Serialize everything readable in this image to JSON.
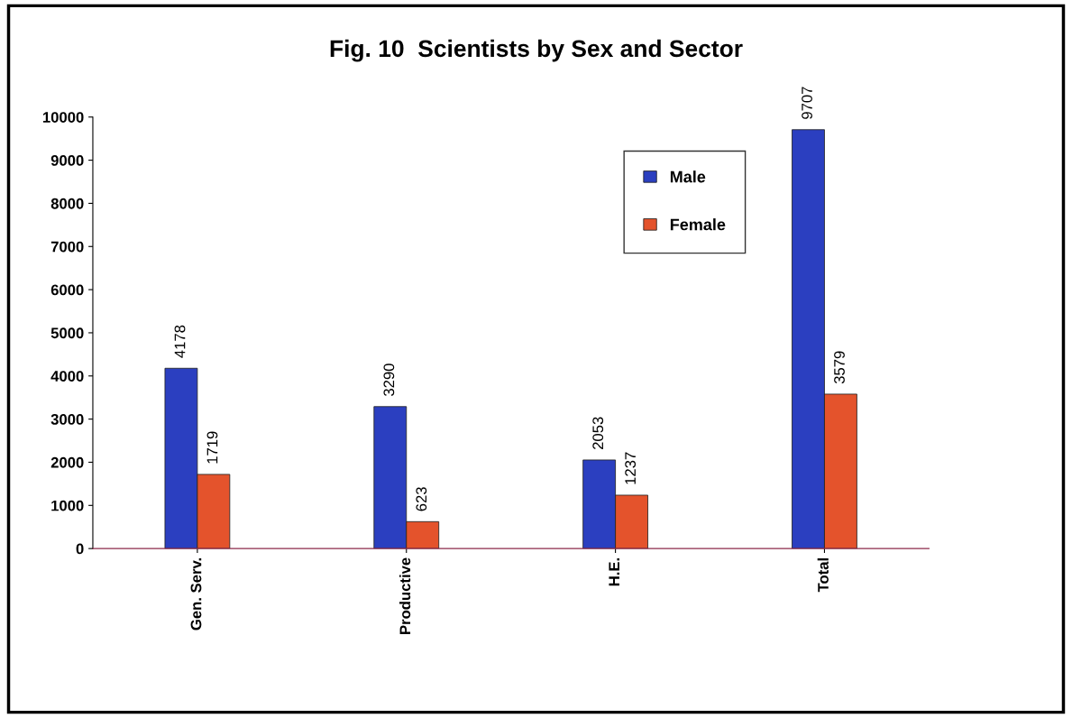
{
  "chart_data": {
    "type": "bar",
    "title": "Fig. 10  Scientists by Sex and Sector",
    "categories": [
      "Gen. Serv.",
      "Productive",
      "H.E.",
      "Total"
    ],
    "series": [
      {
        "name": "Male",
        "color": "#2b3fc0",
        "values": [
          4178,
          3290,
          2053,
          9707
        ]
      },
      {
        "name": "Female",
        "color": "#e4532c",
        "values": [
          1719,
          623,
          1237,
          3579
        ]
      }
    ],
    "ylim": [
      0,
      10000
    ],
    "yticks": [
      0,
      1000,
      2000,
      3000,
      4000,
      5000,
      6000,
      7000,
      8000,
      9000,
      10000
    ],
    "data_labels": true,
    "legend": "top right",
    "grid": false
  }
}
